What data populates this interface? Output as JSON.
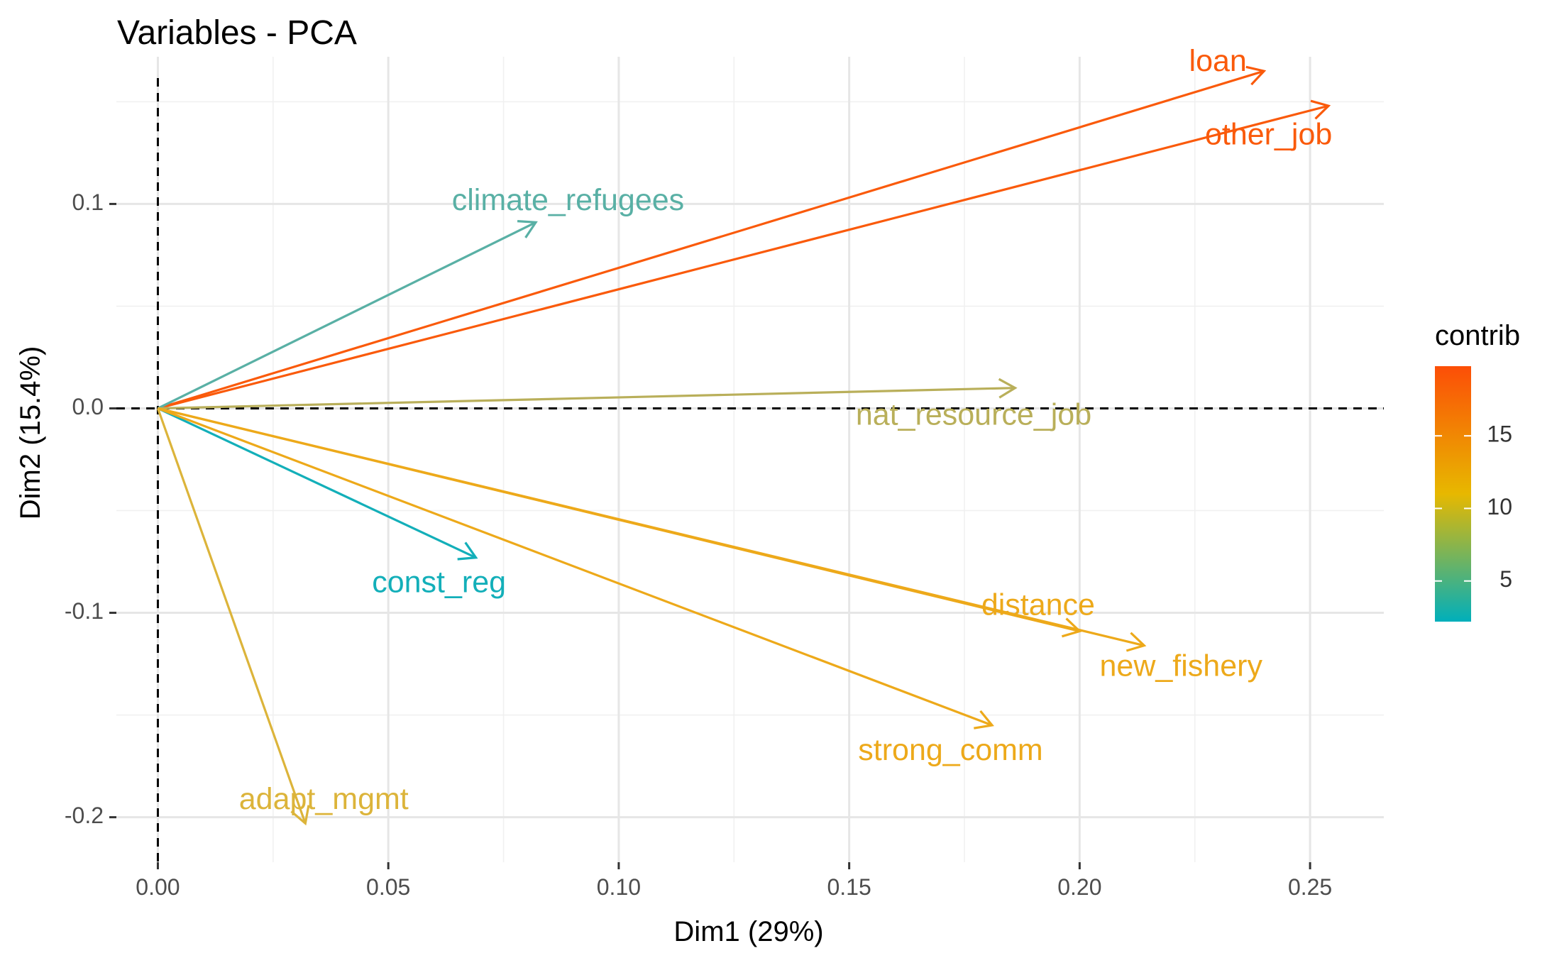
{
  "chart_data": {
    "type": "scatter",
    "subtype": "pca-variable-arrows",
    "title": "Variables - PCA",
    "xlabel": "Dim1 (29%)",
    "ylabel": "Dim2 (15.4%)",
    "xlim": [
      -0.009,
      0.266
    ],
    "ylim": [
      -0.222,
      0.172
    ],
    "x_ticks": [
      {
        "value": 0.0,
        "label": "0.00"
      },
      {
        "value": 0.05,
        "label": "0.05"
      },
      {
        "value": 0.1,
        "label": "0.10"
      },
      {
        "value": 0.15,
        "label": "0.15"
      },
      {
        "value": 0.2,
        "label": "0.20"
      },
      {
        "value": 0.25,
        "label": "0.25"
      }
    ],
    "y_ticks": [
      {
        "value": -0.2,
        "label": "-0.2"
      },
      {
        "value": -0.1,
        "label": "-0.1"
      },
      {
        "value": 0.0,
        "label": "0.0"
      },
      {
        "value": 0.1,
        "label": "0.1"
      }
    ],
    "grid": true,
    "reference_lines": {
      "x": 0,
      "y": 0,
      "style": "dashed"
    },
    "legend": {
      "title": "contrib",
      "placement": "right",
      "type": "gradient",
      "colors": [
        "#00AFBB",
        "#E7B800",
        "#FC4E07"
      ],
      "range": [
        2.2,
        19.8
      ],
      "ticks": [
        5,
        10,
        15
      ]
    },
    "variables": [
      {
        "name": "loan",
        "x": 0.24,
        "y": 0.165,
        "contrib": 19.3,
        "color": "#FA5A0B",
        "label_x": 0.23,
        "label_y": 0.169
      },
      {
        "name": "other_job",
        "x": 0.254,
        "y": 0.148,
        "contrib": 19.8,
        "color": "#FA5A0B",
        "label_x": 0.241,
        "label_y": 0.133
      },
      {
        "name": "climate_refugees",
        "x": 0.082,
        "y": 0.091,
        "contrib": 5.0,
        "color": "#59B0A5",
        "label_x": 0.089,
        "label_y": 0.101
      },
      {
        "name": "nat_resource_job",
        "x": 0.186,
        "y": 0.01,
        "contrib": 8.0,
        "color": "#B9AF5A",
        "label_x": 0.177,
        "label_y": -0.004
      },
      {
        "name": "const_reg",
        "x": 0.069,
        "y": -0.073,
        "contrib": 2.5,
        "color": "#13AFB9",
        "label_x": 0.061,
        "label_y": -0.086
      },
      {
        "name": "distance",
        "x": 0.2,
        "y": -0.109,
        "contrib": 13.0,
        "color": "#EDA91A",
        "label_x": 0.191,
        "label_y": -0.097
      },
      {
        "name": "new_fishery",
        "x": 0.214,
        "y": -0.116,
        "contrib": 13.5,
        "color": "#EDA91A",
        "label_x": 0.222,
        "label_y": -0.127
      },
      {
        "name": "strong_comm",
        "x": 0.181,
        "y": -0.155,
        "contrib": 13.0,
        "color": "#EDA91A",
        "label_x": 0.172,
        "label_y": -0.168
      },
      {
        "name": "adapt_mgmt",
        "x": 0.032,
        "y": -0.203,
        "contrib": 10.0,
        "color": "#DCB43A",
        "label_x": 0.036,
        "label_y": -0.192
      }
    ]
  }
}
